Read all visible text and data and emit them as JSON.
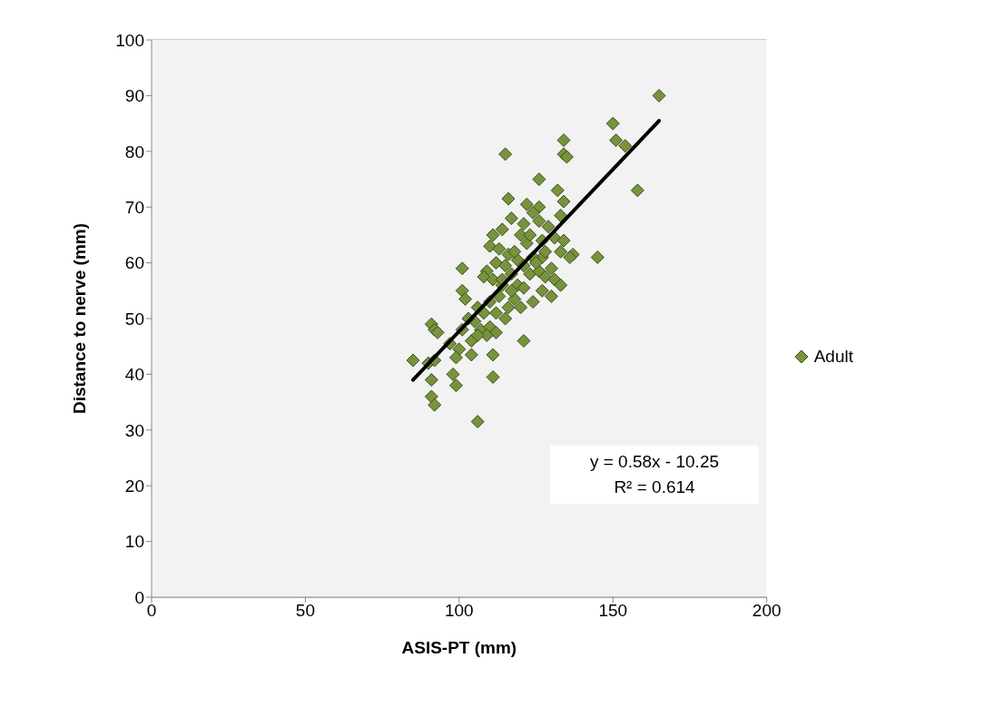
{
  "chart_data": {
    "type": "scatter",
    "xlabel": "ASIS-PT (mm)",
    "ylabel": "Distance to nerve (mm)",
    "xlim": [
      0,
      200
    ],
    "xticks": [
      0,
      50,
      100,
      150,
      200
    ],
    "ylim": [
      0,
      100
    ],
    "yticks": [
      0,
      10,
      20,
      30,
      40,
      50,
      60,
      70,
      80,
      90,
      100
    ],
    "grid": "y",
    "legend": "right",
    "annotations": [
      "y = 0.58x - 10.25",
      "R² = 0.614"
    ],
    "series": [
      {
        "name": "Adult",
        "type": "scatter",
        "marker": "diamond",
        "color": "#77933c",
        "x": [
          165,
          150,
          151,
          154,
          158,
          145,
          134,
          134,
          135,
          115,
          126,
          132,
          116,
          134,
          122,
          126,
          124,
          133,
          117,
          121,
          126,
          129,
          114,
          111,
          120,
          131,
          134,
          127,
          122,
          110,
          113,
          116,
          137,
          133,
          136,
          127,
          124,
          119,
          112,
          115,
          101,
          109,
          121,
          130,
          108,
          111,
          117,
          123,
          126,
          128,
          131,
          133,
          114,
          119,
          121,
          127,
          101,
          106,
          110,
          113,
          116,
          118,
          124,
          130,
          102,
          108,
          112,
          120,
          105,
          107,
          110,
          112,
          115,
          109,
          91,
          92,
          93,
          97,
          100,
          104,
          111,
          121,
          101,
          85,
          90,
          92,
          99,
          91,
          98,
          99,
          111,
          91,
          92,
          106,
          104,
          106,
          103,
          114,
          117,
          125,
          128,
          123,
          118
        ],
        "values": [
          90,
          85,
          82,
          81,
          73,
          61,
          82,
          79.5,
          79,
          79.5,
          75,
          73,
          71.5,
          71,
          70.5,
          70,
          69,
          68.5,
          68,
          67,
          67.5,
          66.5,
          66,
          65,
          65,
          64.5,
          64,
          64,
          63.5,
          63,
          62.5,
          61.5,
          61.5,
          62,
          61,
          61,
          61,
          60.5,
          60,
          59.5,
          59,
          58.5,
          59.5,
          59,
          57.5,
          57,
          58,
          58,
          58.5,
          57.5,
          57,
          56,
          56,
          56,
          55.5,
          55,
          55,
          52,
          53,
          54,
          52,
          53.5,
          53,
          54,
          53.5,
          51,
          51,
          52,
          49.5,
          48,
          48.5,
          47.5,
          50,
          47,
          49,
          48,
          47.5,
          45.5,
          44.5,
          43.5,
          43.5,
          46,
          48,
          42.5,
          42,
          42.5,
          43,
          39,
          40,
          38,
          39.5,
          36,
          34.5,
          31.5,
          46,
          47,
          50,
          57,
          55,
          60,
          62,
          65,
          62
        ]
      },
      {
        "type": "line",
        "marker": "none",
        "line_style": "solid",
        "color": "#000000",
        "x": [
          85,
          165
        ],
        "values": [
          39,
          85.5
        ]
      }
    ]
  }
}
